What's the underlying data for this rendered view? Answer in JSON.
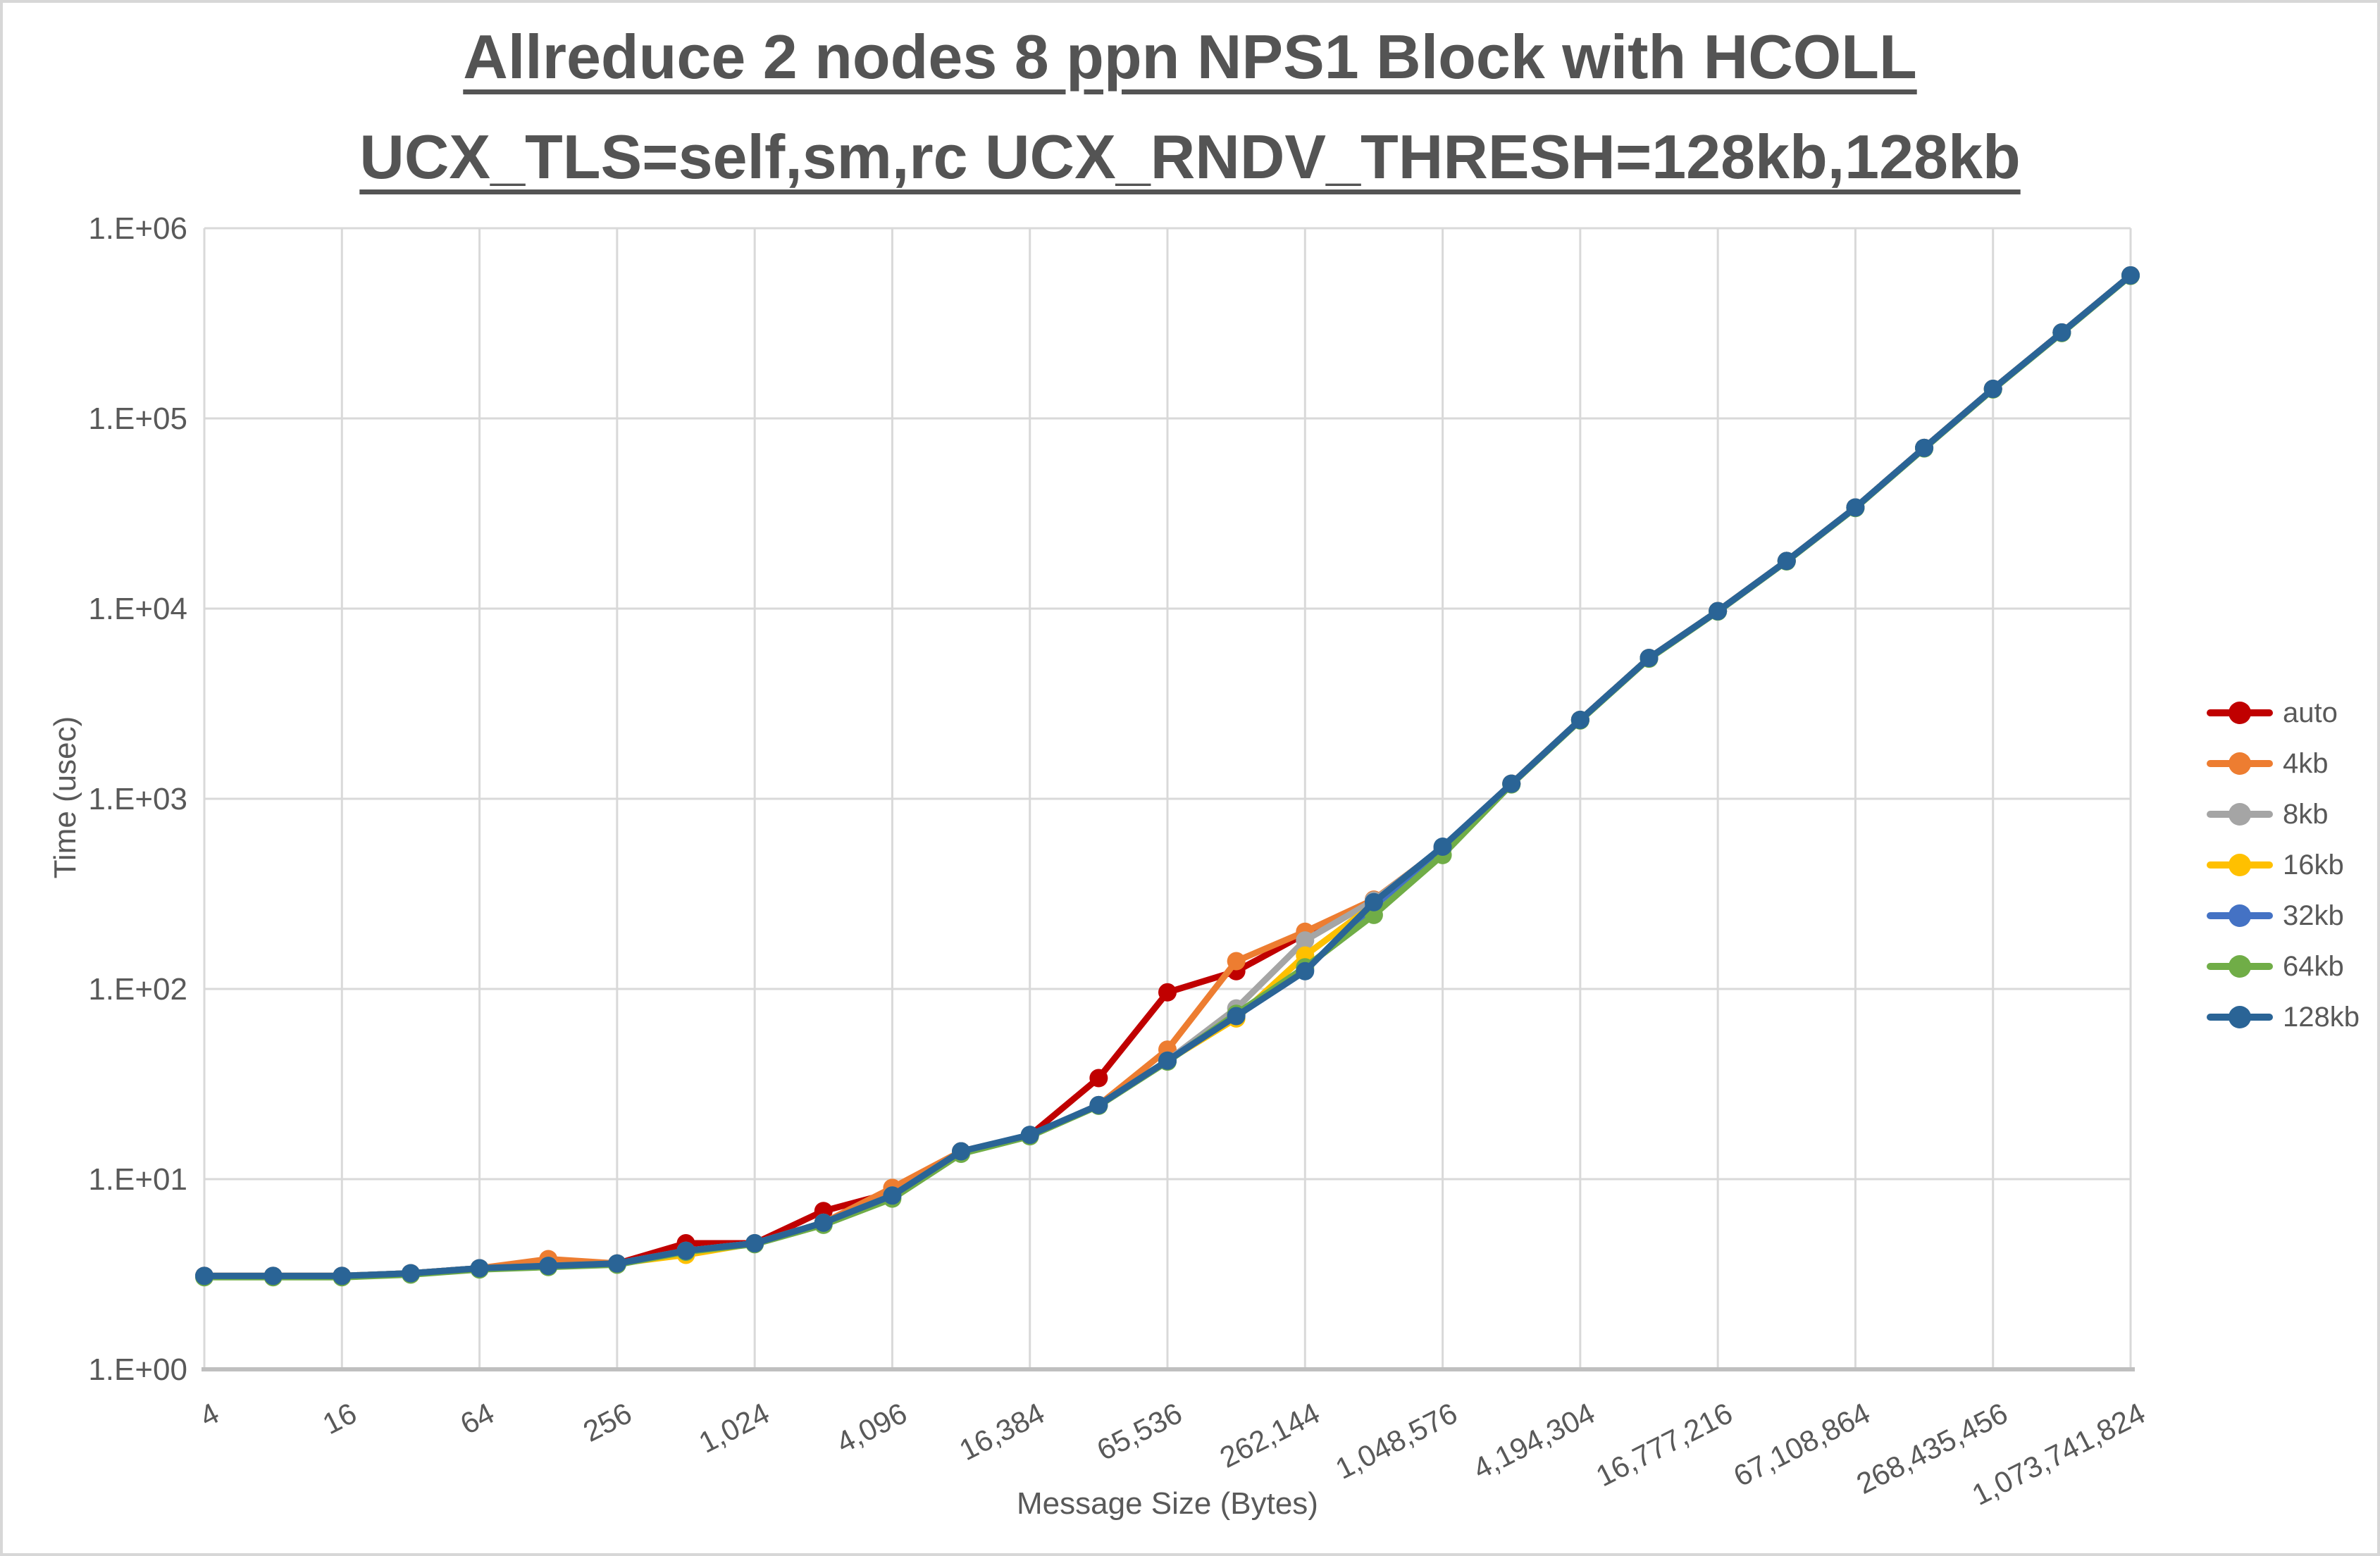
{
  "title": {
    "line1": "Allreduce 2 nodes 8 ppn NPS1 Block with HCOLL",
    "line2": "UCX_TLS=self,sm,rc UCX_RNDV_THRESH=128kb,128kb"
  },
  "axes": {
    "y_title": "Time (usec)",
    "x_title": "Message Size (Bytes)"
  },
  "colors": {
    "grid": "#D9D9D9",
    "axis_line": "#BFBFBF",
    "tick_text": "#595959",
    "title_text": "#545454"
  },
  "chart_data": {
    "type": "line",
    "x_axis": "categories are message sizes in bytes, powers of 2, log-style spacing",
    "y_scale": "log10",
    "ylim": [
      1,
      1000000
    ],
    "grid": true,
    "legend_position": "right",
    "categories": [
      4,
      8,
      16,
      32,
      64,
      128,
      256,
      512,
      1024,
      2048,
      4096,
      8192,
      16384,
      32768,
      65536,
      131072,
      262144,
      524288,
      1048576,
      2097152,
      4194304,
      8388608,
      16777216,
      33554432,
      67108864,
      134217728,
      268435456,
      536870912,
      1073741824
    ],
    "x_tick_labels": [
      "4",
      "16",
      "64",
      "256",
      "1,024",
      "4,096",
      "16,384",
      "65,536",
      "262,144",
      "1,048,576",
      "4,194,304",
      "16,777,216",
      "67,108,864",
      "268,435,456",
      "1,073,741,824"
    ],
    "y_tick_labels": [
      "1.E+00",
      "1.E+01",
      "1.E+02",
      "1.E+03",
      "1.E+04",
      "1.E+05",
      "1.E+06"
    ],
    "series": [
      {
        "name": "auto",
        "color": "#C00000",
        "values": [
          3.1,
          3.1,
          3.1,
          3.2,
          3.4,
          3.5,
          3.6,
          4.6,
          4.6,
          6.8,
          8.5,
          14,
          17,
          34,
          96,
          124,
          195,
          290,
          555,
          1200,
          2600,
          5500,
          9700,
          17800,
          34000,
          70000,
          143000,
          283000,
          565000
        ]
      },
      {
        "name": "4kb",
        "color": "#ED7D31",
        "values": [
          3.1,
          3.1,
          3.1,
          3.2,
          3.4,
          3.8,
          3.6,
          4.2,
          4.6,
          5.9,
          9,
          14,
          17,
          24.5,
          48,
          140,
          200,
          295,
          550,
          1200,
          2600,
          5500,
          9700,
          17800,
          34000,
          70000,
          143000,
          283000,
          565000
        ]
      },
      {
        "name": "8kb",
        "color": "#A5A5A5",
        "values": [
          3.1,
          3.1,
          3.1,
          3.2,
          3.4,
          3.5,
          3.6,
          4.2,
          4.6,
          5.9,
          8.2,
          14,
          17,
          24.5,
          42,
          79,
          180,
          292,
          552,
          1200,
          2600,
          5500,
          9700,
          17800,
          34000,
          70000,
          143000,
          283000,
          565000
        ]
      },
      {
        "name": "16kb",
        "color": "#FFC000",
        "values": [
          3.1,
          3.1,
          3.1,
          3.2,
          3.4,
          3.5,
          3.6,
          4,
          4.6,
          5.9,
          8.2,
          14,
          17,
          24.5,
          42,
          70,
          150,
          278,
          548,
          1200,
          2600,
          5500,
          9700,
          17800,
          34000,
          70000,
          143000,
          283000,
          565000
        ]
      },
      {
        "name": "32kb",
        "color": "#4472C4",
        "values": [
          3.1,
          3.1,
          3.1,
          3.2,
          3.4,
          3.5,
          3.6,
          4.2,
          4.6,
          5.9,
          8.2,
          14,
          17,
          24.5,
          42,
          73,
          126,
          272,
          549,
          1200,
          2600,
          5500,
          9700,
          17800,
          34000,
          70000,
          143000,
          283000,
          565000
        ]
      },
      {
        "name": "64kb",
        "color": "#70AD47",
        "values": [
          3.05,
          3.05,
          3.05,
          3.15,
          3.35,
          3.45,
          3.55,
          4.15,
          4.55,
          5.75,
          7.9,
          13.6,
          16.8,
          24.3,
          41.5,
          74,
          130,
          245,
          506,
          1190,
          2580,
          5450,
          9650,
          17700,
          33800,
          69500,
          142000,
          281000,
          562000
        ]
      },
      {
        "name": "128kb",
        "color": "#2A6496",
        "values": [
          3.1,
          3.1,
          3.1,
          3.2,
          3.4,
          3.5,
          3.6,
          4.2,
          4.6,
          5.9,
          8.2,
          14,
          17.1,
          24.5,
          42,
          72,
          124,
          286,
          560,
          1200,
          2600,
          5500,
          9700,
          17800,
          34000,
          70000,
          143000,
          283000,
          565000
        ]
      }
    ]
  }
}
